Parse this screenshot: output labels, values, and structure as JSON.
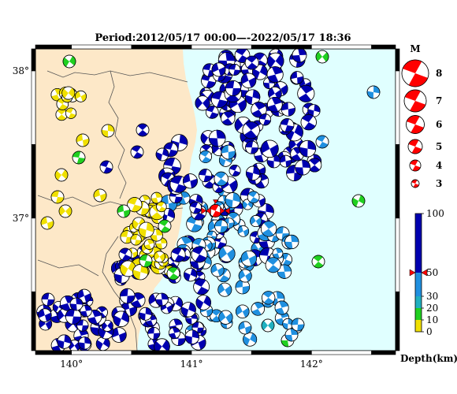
{
  "title": "Period:2012/05/17 00:00—-2022/05/17 18:36",
  "axes": {
    "lon_ticks": [
      "140°",
      "141°",
      "142°"
    ],
    "lat_ticks": [
      "38°",
      "37°"
    ],
    "lon_range": [
      139.7,
      142.7
    ],
    "lat_range": [
      36.1,
      38.15
    ]
  },
  "magnitude_legend": {
    "title": "M",
    "labels": [
      "8",
      "7",
      "6",
      "5",
      "4",
      "3"
    ],
    "color": "#ff0000"
  },
  "depth_legend": {
    "title": "Depth(km)",
    "labels": [
      "100",
      "50",
      "30",
      "20",
      "10",
      "0"
    ],
    "bands": [
      {
        "from": 0,
        "to": 10,
        "color": "#f0e000"
      },
      {
        "from": 10,
        "to": 20,
        "color": "#20d020"
      },
      {
        "from": 20,
        "to": 30,
        "color": "#20b0c0"
      },
      {
        "from": 30,
        "to": 50,
        "color": "#2090e0"
      },
      {
        "from": 50,
        "to": 100,
        "color": "#0000b0"
      }
    ],
    "marker_depth": 50
  },
  "colors": {
    "land": "#fde8c8",
    "sea": "#e0ffff",
    "frame": "#000000",
    "highlight": "#ff0000"
  },
  "main_event": {
    "lon": 141.2,
    "lat": 37.05,
    "mag": 6.0
  }
}
